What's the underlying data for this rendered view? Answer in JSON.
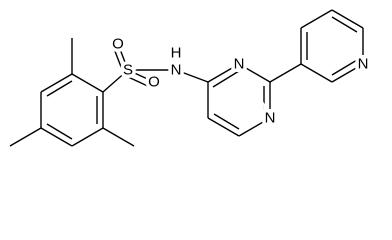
{
  "labels": {
    "o_top": "O",
    "o_right": "O",
    "s": "S",
    "nh_h": "H",
    "nh_n": "N",
    "pyrimidine_n3": "N",
    "pyrimidine_n1": "N",
    "pyridine_n": "N"
  }
}
